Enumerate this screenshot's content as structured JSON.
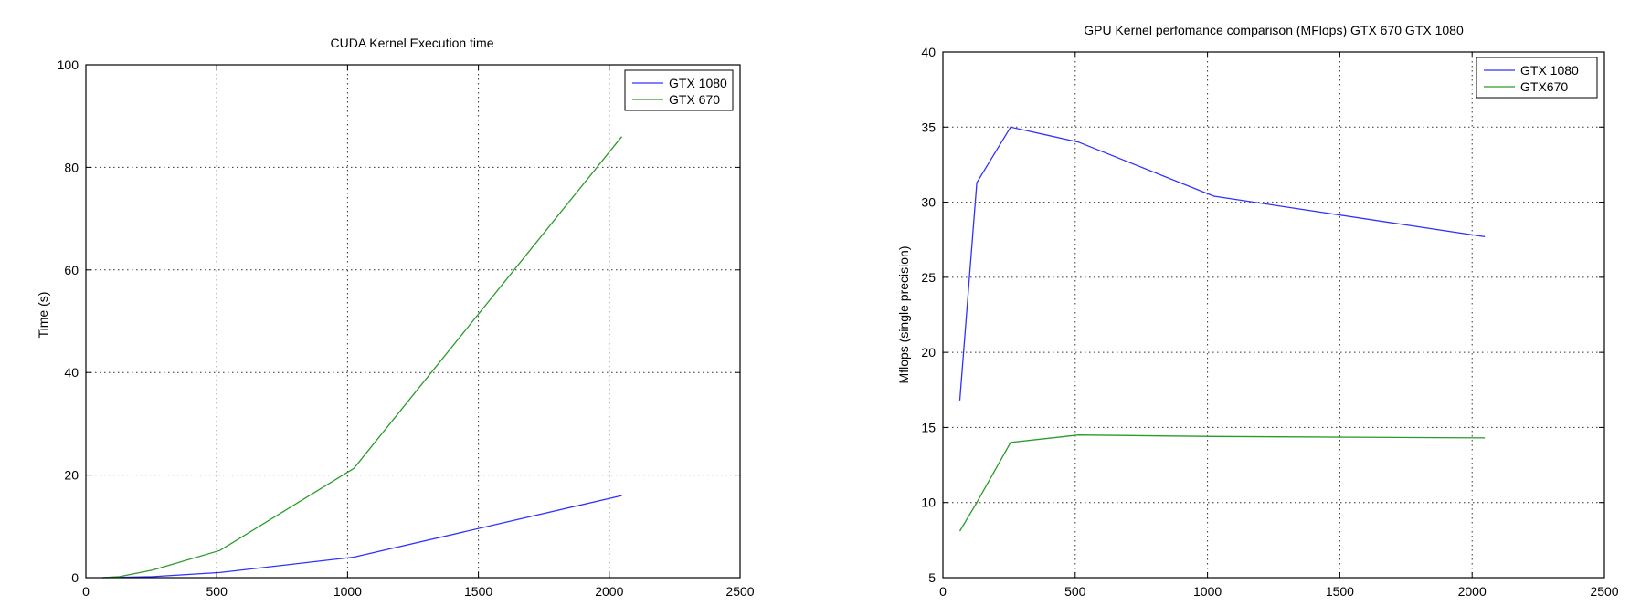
{
  "chart_data": [
    {
      "type": "line",
      "title": "CUDA Kernel Execution time",
      "xlabel": "",
      "ylabel": "Time (s)",
      "xlim": [
        0,
        2500
      ],
      "ylim": [
        0,
        100
      ],
      "xticks": [
        0,
        500,
        1000,
        1500,
        2000,
        2500
      ],
      "yticks": [
        0,
        20,
        40,
        60,
        80,
        100
      ],
      "grid": true,
      "legend_position": "top-right",
      "series": [
        {
          "name": "GTX 1080",
          "color": "#3030ff",
          "x": [
            64,
            128,
            256,
            512,
            1024,
            2048
          ],
          "y": [
            0.0,
            0.05,
            0.2,
            1.0,
            4.0,
            16.0
          ]
        },
        {
          "name": "GTX 670",
          "color": "#2a9a2a",
          "x": [
            64,
            128,
            256,
            512,
            1024,
            2048
          ],
          "y": [
            0.0,
            0.2,
            1.5,
            5.3,
            21.3,
            86.0
          ]
        }
      ]
    },
    {
      "type": "line",
      "title": "GPU Kernel perfomance comparison (MFlops) GTX 670  GTX 1080",
      "xlabel": "",
      "ylabel": "Mflops (single precision)",
      "xlim": [
        0,
        2500
      ],
      "ylim": [
        5,
        40
      ],
      "xticks": [
        0,
        500,
        1000,
        1500,
        2000,
        2500
      ],
      "yticks": [
        5,
        10,
        15,
        20,
        25,
        30,
        35,
        40
      ],
      "grid": true,
      "legend_position": "top-right",
      "series": [
        {
          "name": "GTX 1080",
          "color": "#3030ff",
          "x": [
            64,
            128,
            256,
            512,
            1024,
            2048
          ],
          "y": [
            16.8,
            31.3,
            35.0,
            34.0,
            30.4,
            27.7
          ]
        },
        {
          "name": "GTX670",
          "color": "#2a9a2a",
          "x": [
            64,
            128,
            256,
            512,
            1024,
            2048
          ],
          "y": [
            8.1,
            10.0,
            14.0,
            14.5,
            14.4,
            14.3
          ]
        }
      ]
    }
  ]
}
